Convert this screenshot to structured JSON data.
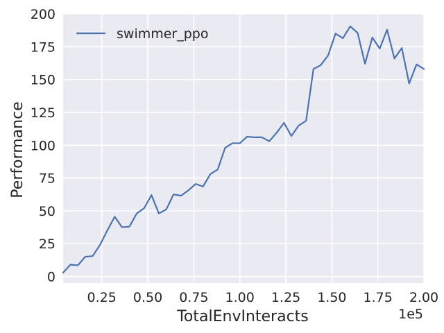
{
  "chart_data": {
    "type": "line",
    "title": "",
    "xlabel": "TotalEnvInteracts",
    "ylabel": "Performance",
    "x_offset_text": "1e5",
    "x_scale": 100000,
    "xlim": [
      4000,
      200000
    ],
    "ylim": [
      -5,
      200
    ],
    "x_ticks": [
      25000,
      50000,
      75000,
      100000,
      125000,
      150000,
      175000,
      200000
    ],
    "x_tick_labels": [
      "0.25",
      "0.50",
      "0.75",
      "1.00",
      "1.25",
      "1.50",
      "1.75",
      "2.00"
    ],
    "y_ticks": [
      0,
      25,
      50,
      75,
      100,
      125,
      150,
      175,
      200
    ],
    "y_tick_labels": [
      "0",
      "25",
      "50",
      "75",
      "100",
      "125",
      "150",
      "175",
      "200"
    ],
    "grid": true,
    "legend": {
      "position": "top-left"
    },
    "colors": {
      "background": "#eaeaf2",
      "grid": "#ffffff",
      "series": "#4c72b0"
    },
    "series": [
      {
        "name": "swimmer_ppo",
        "color": "#4c72b0",
        "x": [
          4000,
          8000,
          12000,
          16000,
          20000,
          24000,
          28000,
          32000,
          36000,
          40000,
          44000,
          48000,
          52000,
          56000,
          60000,
          64000,
          68000,
          72000,
          76000,
          80000,
          84000,
          88000,
          92000,
          96000,
          100000,
          104000,
          108000,
          112000,
          116000,
          120000,
          124000,
          128000,
          132000,
          136000,
          140000,
          144000,
          148000,
          152000,
          156000,
          160000,
          164000,
          168000,
          172000,
          176000,
          180000,
          184000,
          188000,
          192000,
          196000,
          200000
        ],
        "y": [
          3,
          9,
          8.5,
          15,
          15.5,
          24,
          35,
          45.5,
          37.5,
          38,
          48,
          52,
          62,
          48,
          51,
          62.5,
          61.5,
          65.5,
          70.5,
          68.5,
          78,
          81.5,
          98,
          101.5,
          101.5,
          106.5,
          106,
          106,
          103,
          109.5,
          117,
          107,
          115,
          118.5,
          158,
          161,
          168.5,
          185,
          181.5,
          190.5,
          185.5,
          162,
          182,
          173.5,
          188,
          166,
          174,
          147,
          161.5,
          158
        ]
      }
    ]
  }
}
